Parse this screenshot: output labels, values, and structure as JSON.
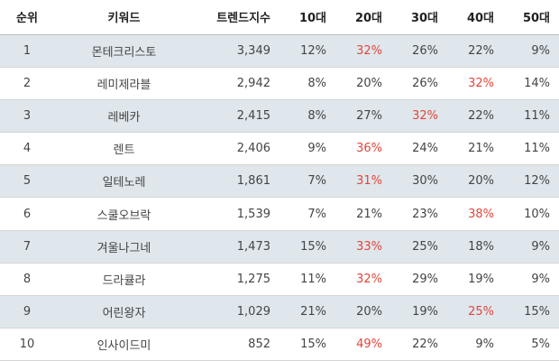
{
  "table": {
    "headers": [
      "순위",
      "키워드",
      "트렌드지수",
      "10대",
      "20대",
      "30대",
      "40대",
      "50대"
    ],
    "highlight_color": "#e3453b",
    "rows": [
      {
        "rank": "1",
        "keyword": "몬테크리스토",
        "index": "3,349",
        "a10": "12%",
        "a20": "32%",
        "a30": "26%",
        "a40": "22%",
        "a50": "9%",
        "max": "a20"
      },
      {
        "rank": "2",
        "keyword": "레미제라블",
        "index": "2,942",
        "a10": "8%",
        "a20": "20%",
        "a30": "26%",
        "a40": "32%",
        "a50": "14%",
        "max": "a40"
      },
      {
        "rank": "3",
        "keyword": "레베카",
        "index": "2,415",
        "a10": "8%",
        "a20": "27%",
        "a30": "32%",
        "a40": "22%",
        "a50": "11%",
        "max": "a30"
      },
      {
        "rank": "4",
        "keyword": "렌트",
        "index": "2,406",
        "a10": "9%",
        "a20": "36%",
        "a30": "24%",
        "a40": "21%",
        "a50": "11%",
        "max": "a20"
      },
      {
        "rank": "5",
        "keyword": "일테노레",
        "index": "1,861",
        "a10": "7%",
        "a20": "31%",
        "a30": "30%",
        "a40": "20%",
        "a50": "12%",
        "max": "a20"
      },
      {
        "rank": "6",
        "keyword": "스쿨오브락",
        "index": "1,539",
        "a10": "7%",
        "a20": "21%",
        "a30": "23%",
        "a40": "38%",
        "a50": "10%",
        "max": "a40"
      },
      {
        "rank": "7",
        "keyword": "겨울나그네",
        "index": "1,473",
        "a10": "15%",
        "a20": "33%",
        "a30": "25%",
        "a40": "18%",
        "a50": "9%",
        "max": "a20"
      },
      {
        "rank": "8",
        "keyword": "드라큘라",
        "index": "1,275",
        "a10": "11%",
        "a20": "32%",
        "a30": "29%",
        "a40": "19%",
        "a50": "9%",
        "max": "a20"
      },
      {
        "rank": "9",
        "keyword": "어린왕자",
        "index": "1,029",
        "a10": "21%",
        "a20": "20%",
        "a30": "19%",
        "a40": "25%",
        "a50": "15%",
        "max": "a40"
      },
      {
        "rank": "10",
        "keyword": "인사이드미",
        "index": "852",
        "a10": "15%",
        "a20": "49%",
        "a30": "22%",
        "a40": "9%",
        "a50": "5%",
        "max": "a20"
      }
    ]
  }
}
